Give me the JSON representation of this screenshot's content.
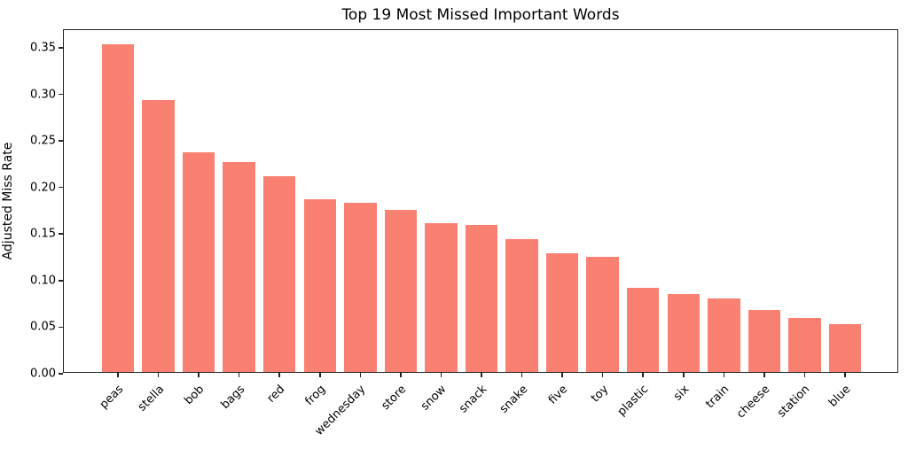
{
  "chart_data": {
    "type": "bar",
    "title": "Top 19 Most Missed Important Words",
    "xlabel": "",
    "ylabel": "Adjusted Miss Rate",
    "categories": [
      "peas",
      "stella",
      "bob",
      "bags",
      "red",
      "frog",
      "wednesday",
      "store",
      "snow",
      "snack",
      "snake",
      "five",
      "toy",
      "plastic",
      "six",
      "train",
      "cheese",
      "station",
      "blue"
    ],
    "values": [
      0.352,
      0.292,
      0.236,
      0.225,
      0.21,
      0.185,
      0.182,
      0.174,
      0.16,
      0.158,
      0.143,
      0.127,
      0.124,
      0.09,
      0.084,
      0.079,
      0.067,
      0.058,
      0.051
    ],
    "bar_color": "#FA8072",
    "ylim": [
      0,
      0.369
    ],
    "yticks": [
      0.0,
      0.05,
      0.1,
      0.15,
      0.2,
      0.25,
      0.3,
      0.35
    ],
    "ytick_labels": [
      "0.00",
      "0.05",
      "0.10",
      "0.15",
      "0.20",
      "0.25",
      "0.30",
      "0.35"
    ],
    "xtick_rotation_deg": 45,
    "grid": false,
    "legend": "none"
  }
}
